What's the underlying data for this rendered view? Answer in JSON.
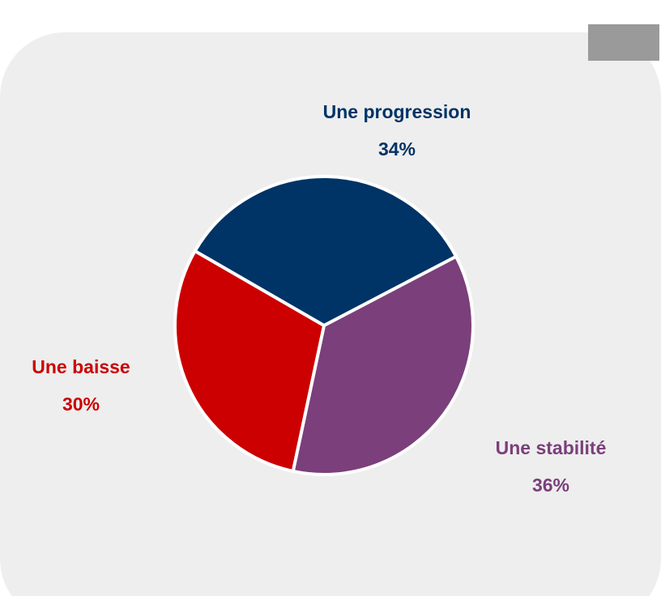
{
  "chart_data": {
    "type": "pie",
    "categories": [
      "Une progression",
      "Une stabilité",
      "Une baisse"
    ],
    "values": [
      34,
      36,
      30
    ],
    "value_labels": [
      "34%",
      "36%",
      "30%"
    ],
    "colors": [
      "#003366",
      "#7b3f7b",
      "#cc0000"
    ],
    "start_angle": -60
  }
}
